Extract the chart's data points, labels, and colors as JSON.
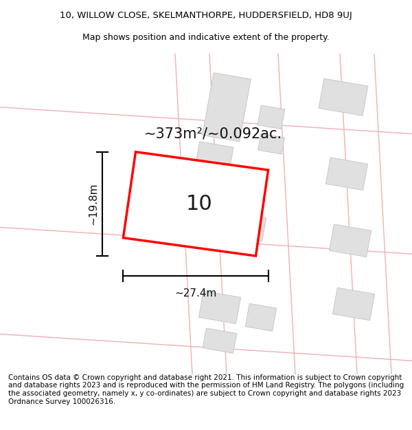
{
  "title_line1": "10, WILLOW CLOSE, SKELMANTHORPE, HUDDERSFIELD, HD8 9UJ",
  "title_line2": "Map shows position and indicative extent of the property.",
  "area_label": "~373m²/~0.092ac.",
  "plot_number": "10",
  "width_label": "~27.4m",
  "height_label": "~19.8m",
  "footer_text": "Contains OS data © Crown copyright and database right 2021. This information is subject to Crown copyright and database rights 2023 and is reproduced with the permission of HM Land Registry. The polygons (including the associated geometry, namely x, y co-ordinates) are subject to Crown copyright and database rights 2023 Ordnance Survey 100026316.",
  "bg_color": "#ffffff",
  "road_color": "#f0b0b0",
  "building_color": "#e0e0e0",
  "building_edge": "#c8c8c8",
  "plot_color": "#ff0000",
  "plot_fill": "#ffffff",
  "title_fontsize": 9.5,
  "subtitle_fontsize": 9,
  "footer_fontsize": 7.5,
  "area_fontsize": 15,
  "dim_fontsize": 11,
  "plot_num_fontsize": 22
}
